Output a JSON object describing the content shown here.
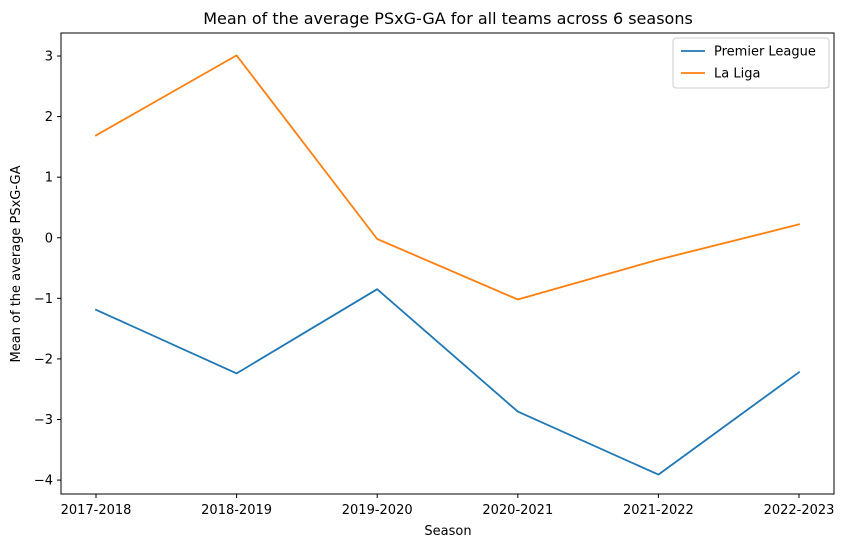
{
  "chart_data": {
    "type": "line",
    "title": "Mean of the average PSxG-GA for all teams across 6 seasons",
    "xlabel": "Season",
    "ylabel": "Mean of the average PSxG-GA",
    "categories": [
      "2017-2018",
      "2018-2019",
      "2019-2020",
      "2020-2021",
      "2021-2022",
      "2022-2023"
    ],
    "yticks": [
      3,
      2,
      1,
      0,
      -1,
      -2,
      -3,
      -4
    ],
    "ytick_labels": [
      "3",
      "2",
      "1",
      "0",
      "−1",
      "−2",
      "−3",
      "−4"
    ],
    "ylim": [
      -4.23,
      3.38
    ],
    "grid": false,
    "legend_position": "top-right",
    "series": [
      {
        "name": "Premier League",
        "color": "#1f77b4",
        "values": [
          -1.19,
          -2.24,
          -0.85,
          -2.87,
          -3.91,
          -2.22
        ]
      },
      {
        "name": "La Liga",
        "color": "#ff7f0e",
        "values": [
          1.69,
          3.01,
          -0.02,
          -1.02,
          -0.36,
          0.22
        ]
      }
    ]
  }
}
